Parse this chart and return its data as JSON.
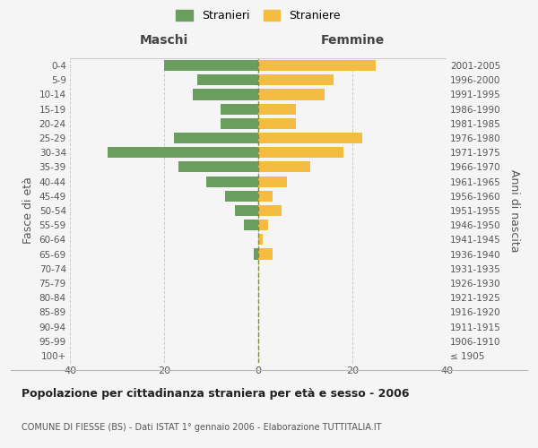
{
  "age_groups": [
    "100+",
    "95-99",
    "90-94",
    "85-89",
    "80-84",
    "75-79",
    "70-74",
    "65-69",
    "60-64",
    "55-59",
    "50-54",
    "45-49",
    "40-44",
    "35-39",
    "30-34",
    "25-29",
    "20-24",
    "15-19",
    "10-14",
    "5-9",
    "0-4"
  ],
  "birth_years": [
    "≤ 1905",
    "1906-1910",
    "1911-1915",
    "1916-1920",
    "1921-1925",
    "1926-1930",
    "1931-1935",
    "1936-1940",
    "1941-1945",
    "1946-1950",
    "1951-1955",
    "1956-1960",
    "1961-1965",
    "1966-1970",
    "1971-1975",
    "1976-1980",
    "1981-1985",
    "1986-1990",
    "1991-1995",
    "1996-2000",
    "2001-2005"
  ],
  "males": [
    0,
    0,
    0,
    0,
    0,
    0,
    0,
    1,
    0,
    3,
    5,
    7,
    11,
    17,
    32,
    18,
    8,
    8,
    14,
    13,
    20
  ],
  "females": [
    0,
    0,
    0,
    0,
    0,
    0,
    0,
    3,
    1,
    2,
    5,
    3,
    6,
    11,
    18,
    22,
    8,
    8,
    14,
    16,
    25
  ],
  "male_color": "#6a9e5f",
  "female_color": "#f5bc42",
  "title": "Popolazione per cittadinanza straniera per età e sesso - 2006",
  "subtitle": "COMUNE DI FIESSE (BS) - Dati ISTAT 1° gennaio 2006 - Elaborazione TUTTITALIA.IT",
  "legend_male": "Stranieri",
  "legend_female": "Straniere",
  "header_left": "Maschi",
  "header_right": "Femmine",
  "ylabel_left": "Fasce di età",
  "ylabel_right": "Anni di nascita",
  "xlim": 40,
  "bg_color": "#f5f5f5",
  "grid_color": "#cccccc",
  "bar_height": 0.75
}
